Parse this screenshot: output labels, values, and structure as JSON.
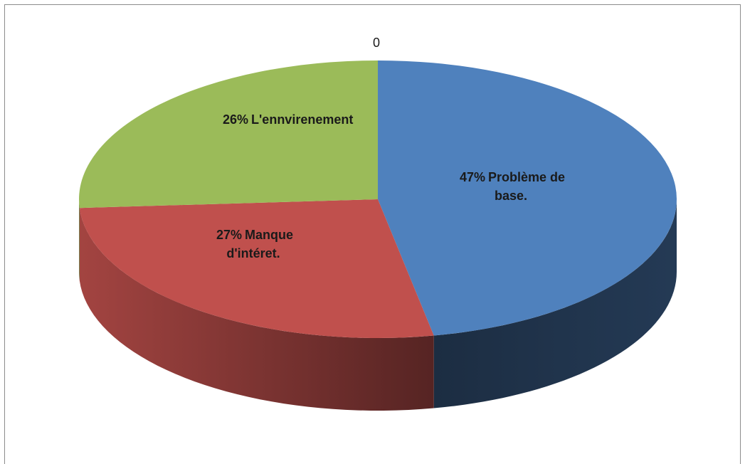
{
  "chart_data": {
    "type": "pie",
    "categories": [
      "Problème de base.",
      "Manque d'intéret.",
      "L'ennvirenement",
      null
    ],
    "values": [
      47,
      27,
      26,
      0
    ],
    "value_labels": [
      "47%",
      "27%",
      "26%",
      "0"
    ],
    "colors": [
      "#4f81bd",
      "#c0504d",
      "#9bbb59",
      "#8064a2"
    ]
  }
}
